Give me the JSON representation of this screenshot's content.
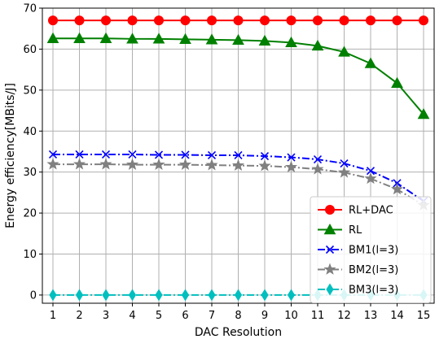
{
  "chart_data": {
    "type": "line",
    "title": "",
    "xlabel": "DAC Resolution",
    "ylabel": "Energy efficiency[MBits/J]",
    "x": [
      1,
      2,
      3,
      4,
      5,
      6,
      7,
      8,
      9,
      10,
      11,
      12,
      13,
      14,
      15
    ],
    "xlim": [
      0.6,
      15.4
    ],
    "ylim": [
      -2,
      70
    ],
    "yticks": [
      0,
      10,
      20,
      30,
      40,
      50,
      60,
      70
    ],
    "grid": true,
    "legend_position": "lower-right",
    "series": [
      {
        "name": "RL+DAC",
        "color": "#ff0000",
        "marker": "circle",
        "dash": "solid",
        "values": [
          67,
          67,
          67,
          67,
          67,
          67,
          67,
          67,
          67,
          67,
          67,
          67,
          67,
          67,
          67
        ]
      },
      {
        "name": "RL",
        "color": "#008000",
        "marker": "triangle",
        "dash": "solid",
        "values": [
          62.6,
          62.6,
          62.6,
          62.5,
          62.5,
          62.4,
          62.3,
          62.2,
          62.0,
          61.6,
          60.8,
          59.3,
          56.5,
          51.7,
          44.1
        ]
      },
      {
        "name": "BM1(l=3)",
        "color": "#0000ff",
        "marker": "x",
        "dash": "dashdot",
        "values": [
          34.3,
          34.3,
          34.3,
          34.3,
          34.2,
          34.2,
          34.1,
          34.1,
          33.9,
          33.6,
          33.1,
          32.1,
          30.3,
          27.3,
          22.9
        ]
      },
      {
        "name": "BM2(l=3)",
        "color": "#808080",
        "marker": "star",
        "dash": "dashdot",
        "values": [
          31.9,
          31.9,
          31.9,
          31.8,
          31.8,
          31.8,
          31.7,
          31.6,
          31.5,
          31.2,
          30.7,
          29.9,
          28.4,
          25.8,
          21.9
        ]
      },
      {
        "name": "BM3(l=3)",
        "color": "#00bfbf",
        "marker": "diamond",
        "dash": "dashdot",
        "values": [
          0,
          0,
          0,
          0,
          0,
          0,
          0,
          0,
          0,
          0,
          0,
          0,
          0,
          0,
          0
        ]
      }
    ]
  }
}
